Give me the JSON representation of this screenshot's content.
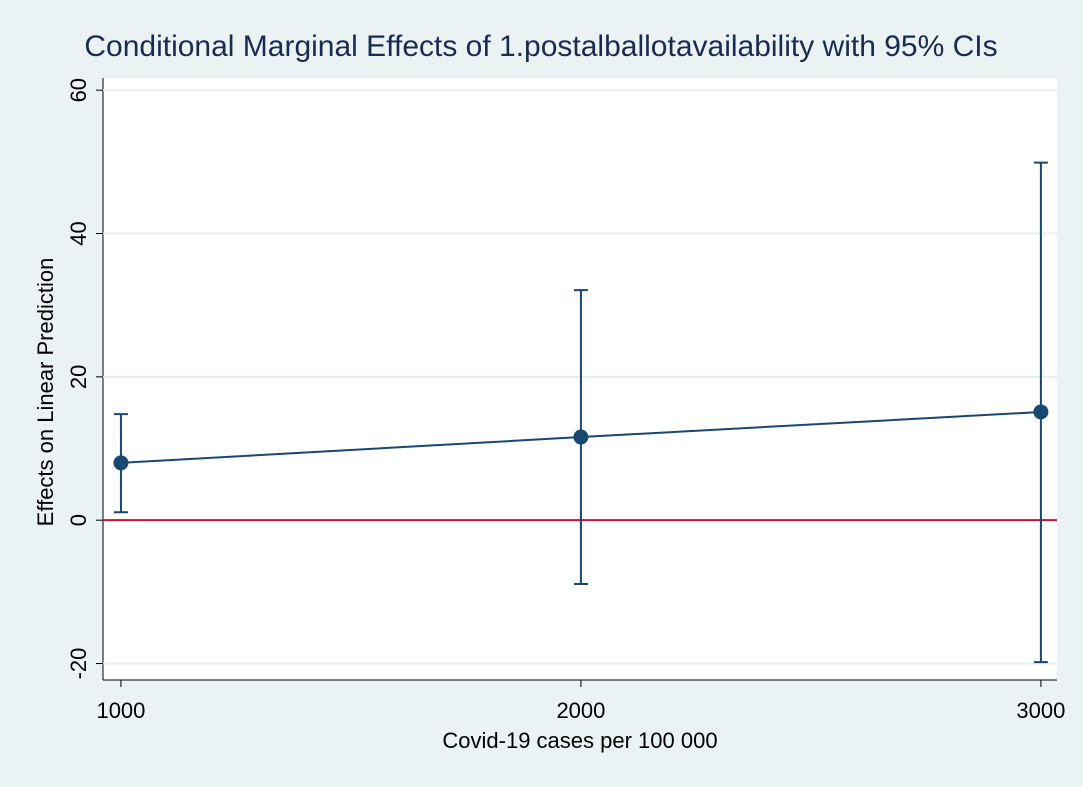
{
  "chart_data": {
    "type": "errorbar",
    "title": "Conditional Marginal Effects of 1.postalballotavailability with 95% CIs",
    "xlabel": "Covid-19 cases per 100 000",
    "ylabel": "Effects on Linear Prediction",
    "x": [
      1000,
      2000,
      3000
    ],
    "series": [
      {
        "color": "#1a476f",
        "values": [
          8,
          11.6,
          15.1
        ],
        "lower": [
          1.1,
          -8.9,
          -19.8
        ],
        "upper": [
          14.8,
          32.1,
          49.9
        ]
      }
    ],
    "xlim": [
      961,
      3035
    ],
    "xticks": [
      1000,
      2000,
      3000
    ],
    "ylim": [
      -22.3,
      61.7
    ],
    "yticks": [
      -20,
      0,
      20,
      40,
      60
    ],
    "yline": 0,
    "yline_color": "#c0143c",
    "grid": true
  }
}
